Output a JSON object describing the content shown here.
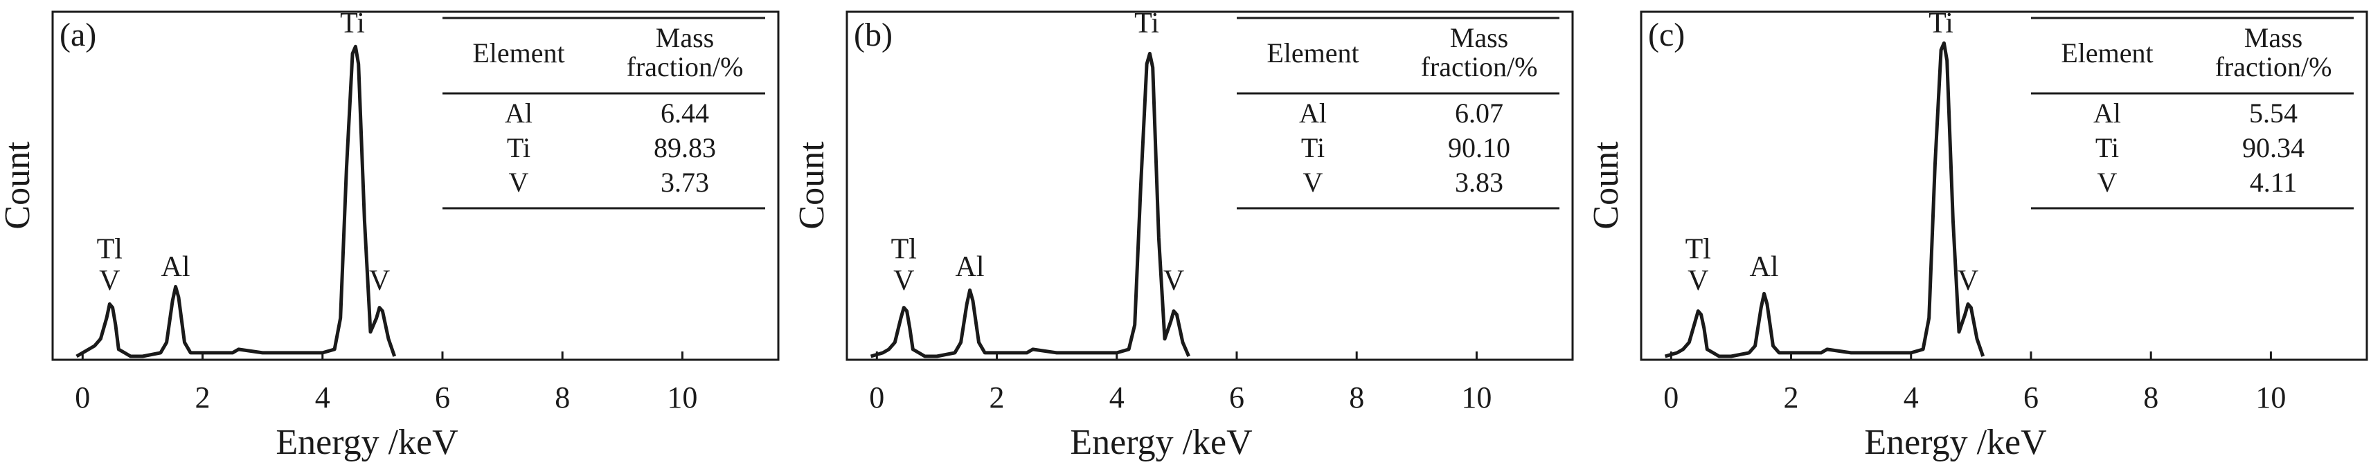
{
  "chart_data": [
    {
      "type": "line",
      "label": "(a)",
      "x_label": "Energy /keV",
      "y_label": "Count",
      "color": "#1a1a1a",
      "x": [
        -0.1,
        0.1,
        0.2,
        0.3,
        0.4,
        0.45,
        0.5,
        0.55,
        0.6,
        0.7,
        0.8,
        1.0,
        1.3,
        1.4,
        1.5,
        1.55,
        1.6,
        1.7,
        1.8,
        2.0,
        2.5,
        2.6,
        3.0,
        4.0,
        4.2,
        4.3,
        4.4,
        4.5,
        4.55,
        4.6,
        4.7,
        4.8,
        4.9,
        4.95,
        5.0,
        5.1,
        5.2
      ],
      "values": [
        1,
        3,
        4,
        6,
        12,
        16,
        15,
        10,
        3,
        2,
        1,
        1,
        2,
        5,
        17,
        21,
        18,
        5,
        2,
        2,
        2,
        3,
        2,
        2,
        3,
        12,
        55,
        88,
        90,
        85,
        40,
        8,
        12,
        15,
        14,
        6,
        1
      ],
      "xlim": [
        -0.5,
        11.6
      ],
      "ylim": [
        0,
        100
      ],
      "xticks": [
        0,
        2,
        4,
        6,
        8,
        10
      ],
      "annotations": [
        "Tl",
        "V",
        "Al",
        "Ti",
        "V"
      ],
      "table": {
        "header": [
          "Element",
          "Mass fraction/%"
        ],
        "rows": [
          [
            "Al",
            "6.44"
          ],
          [
            "Ti",
            "89.83"
          ],
          [
            "V",
            "3.73"
          ]
        ]
      }
    },
    {
      "type": "line",
      "label": "(b)",
      "x_label": "Energy /keV",
      "y_label": "Count",
      "color": "#1a1a1a",
      "x": [
        -0.1,
        0.1,
        0.2,
        0.3,
        0.4,
        0.45,
        0.5,
        0.55,
        0.6,
        0.7,
        0.8,
        1.0,
        1.3,
        1.4,
        1.5,
        1.55,
        1.6,
        1.7,
        1.8,
        2.0,
        2.5,
        2.6,
        3.0,
        4.0,
        4.2,
        4.3,
        4.4,
        4.5,
        4.55,
        4.6,
        4.7,
        4.8,
        4.9,
        4.95,
        5.0,
        5.1,
        5.2
      ],
      "values": [
        1,
        2,
        3,
        5,
        12,
        15,
        14,
        9,
        3,
        2,
        1,
        1,
        2,
        5,
        16,
        20,
        17,
        5,
        2,
        2,
        2,
        3,
        2,
        2,
        3,
        10,
        50,
        85,
        88,
        84,
        35,
        6,
        11,
        14,
        13,
        5,
        1
      ],
      "xlim": [
        -0.5,
        11.6
      ],
      "ylim": [
        0,
        100
      ],
      "xticks": [
        0,
        2,
        4,
        6,
        8,
        10
      ],
      "annotations": [
        "Tl",
        "V",
        "Al",
        "Ti",
        "V"
      ],
      "table": {
        "header": [
          "Element",
          "Mass fraction/%"
        ],
        "rows": [
          [
            "Al",
            "6.07"
          ],
          [
            "Ti",
            "90.10"
          ],
          [
            "V",
            "3.83"
          ]
        ]
      }
    },
    {
      "type": "line",
      "label": "(c)",
      "x_label": "Energy /keV",
      "y_label": "Count",
      "color": "#1a1a1a",
      "x": [
        -0.1,
        0.1,
        0.2,
        0.3,
        0.4,
        0.45,
        0.5,
        0.55,
        0.6,
        0.7,
        0.8,
        1.0,
        1.3,
        1.4,
        1.5,
        1.55,
        1.6,
        1.7,
        1.8,
        2.0,
        2.5,
        2.6,
        3.0,
        4.0,
        4.2,
        4.3,
        4.4,
        4.5,
        4.55,
        4.6,
        4.7,
        4.8,
        4.9,
        4.95,
        5.0,
        5.1,
        5.2
      ],
      "values": [
        1,
        2,
        3,
        5,
        11,
        14,
        13,
        9,
        3,
        2,
        1,
        1,
        2,
        4,
        15,
        19,
        16,
        4,
        2,
        2,
        2,
        3,
        2,
        2,
        3,
        12,
        56,
        89,
        91,
        86,
        40,
        8,
        13,
        16,
        15,
        6,
        1
      ],
      "xlim": [
        -0.5,
        11.6
      ],
      "ylim": [
        0,
        100
      ],
      "xticks": [
        0,
        2,
        4,
        6,
        8,
        10
      ],
      "annotations": [
        "Tl",
        "V",
        "Al",
        "Ti",
        "V"
      ],
      "table": {
        "header": [
          "Element",
          "Mass fraction/%"
        ],
        "rows": [
          [
            "Al",
            "5.54"
          ],
          [
            "Ti",
            "90.34"
          ],
          [
            "V",
            "4.11"
          ]
        ]
      }
    }
  ]
}
